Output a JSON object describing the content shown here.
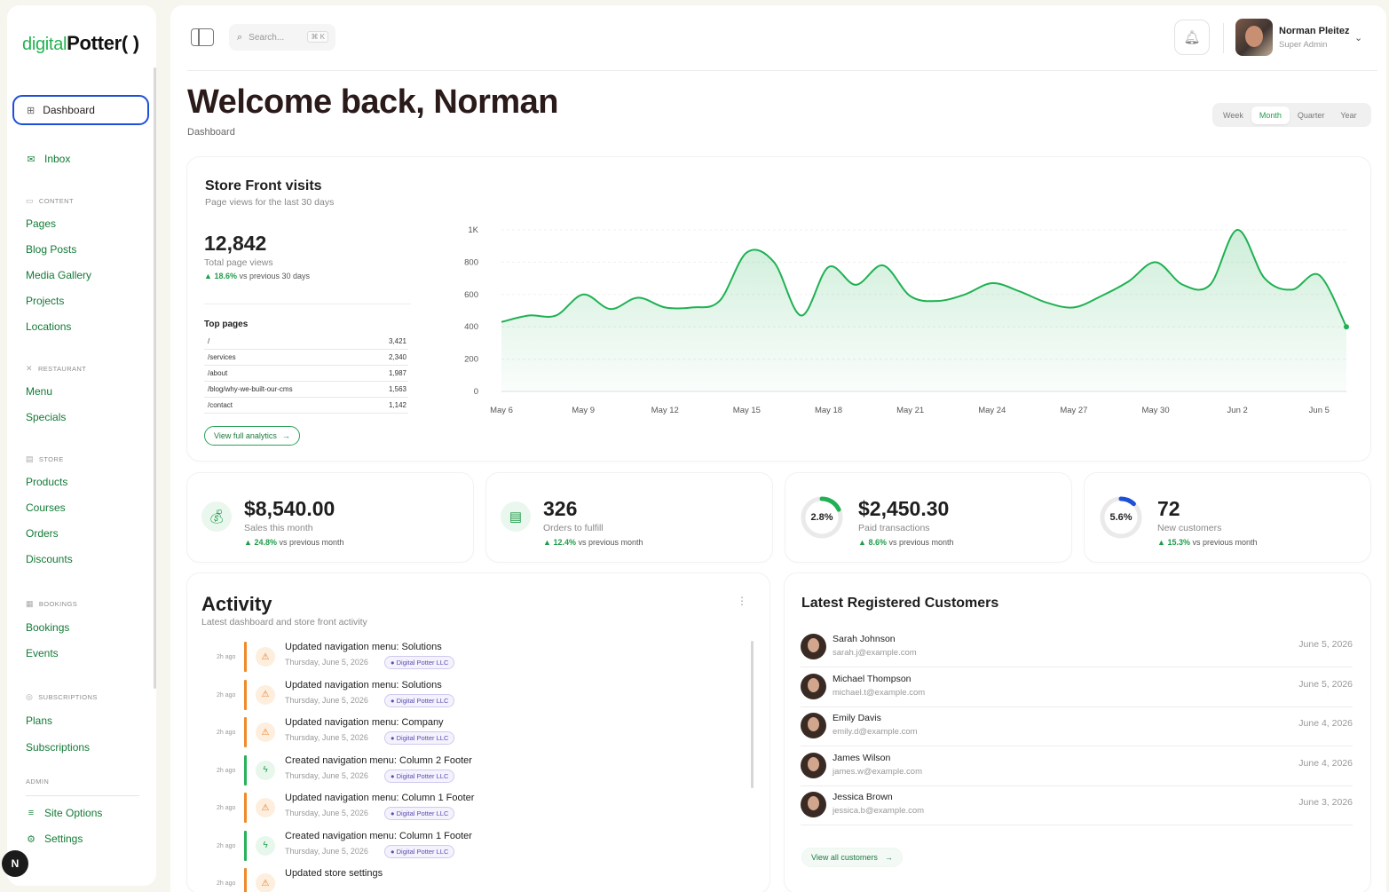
{
  "logo": {
    "part1": "digital",
    "part2": "Potter( )"
  },
  "sidebar": {
    "dashboard": "Dashboard",
    "inbox": "Inbox",
    "sections": {
      "content": "CONTENT",
      "restaurant": "RESTAURANT",
      "store": "STORE",
      "bookings": "BOOKINGS",
      "subscriptions": "SUBSCRIPTIONS",
      "admin": "ADMIN"
    },
    "content_items": [
      "Pages",
      "Blog Posts",
      "Media Gallery",
      "Projects",
      "Locations"
    ],
    "restaurant_items": [
      "Menu",
      "Specials"
    ],
    "store_items": [
      "Products",
      "Courses",
      "Orders",
      "Discounts"
    ],
    "bookings_items": [
      "Bookings",
      "Events"
    ],
    "subscriptions_items": [
      "Plans",
      "Subscriptions"
    ],
    "admin_items": [
      "Site Options",
      "Settings"
    ],
    "avatar_letter": "N"
  },
  "topbar": {
    "search_placeholder": "Search...",
    "search_kbd": "⌘ K",
    "user_name": "Norman Pleitez",
    "user_role": "Super Admin"
  },
  "page": {
    "title": "Welcome back, Norman",
    "breadcrumb": "Dashboard",
    "periods": [
      "Week",
      "Month",
      "Quarter",
      "Year"
    ],
    "active_period": "Month"
  },
  "storefront": {
    "title": "Store Front visits",
    "subtitle": "Page views for the last 30 days",
    "total": "12,842",
    "total_label": "Total page views",
    "trend_value": "18.6%",
    "trend_text": "vs previous 30 days",
    "top_pages_title": "Top pages",
    "top_pages": [
      {
        "path": "/",
        "views": "3,421"
      },
      {
        "path": "/services",
        "views": "2,340"
      },
      {
        "path": "/about",
        "views": "1,987"
      },
      {
        "path": "/blog/why-we-built-our-cms",
        "views": "1,563"
      },
      {
        "path": "/contact",
        "views": "1,142"
      }
    ],
    "view_analytics": "View full analytics"
  },
  "chart_data": {
    "type": "area",
    "title": "",
    "xlabel": "",
    "ylabel": "",
    "ylim": [
      0,
      1000
    ],
    "y_ticks": [
      "0",
      "200",
      "400",
      "600",
      "800",
      "1K"
    ],
    "x_ticks": [
      "May 6",
      "May 9",
      "May 12",
      "May 15",
      "May 18",
      "May 21",
      "May 24",
      "May 27",
      "May 30",
      "Jun 2",
      "Jun 5"
    ],
    "x": [
      "May 6",
      "May 7",
      "May 8",
      "May 9",
      "May 10",
      "May 11",
      "May 12",
      "May 13",
      "May 14",
      "May 15",
      "May 16",
      "May 17",
      "May 18",
      "May 19",
      "May 20",
      "May 21",
      "May 22",
      "May 23",
      "May 24",
      "May 25",
      "May 26",
      "May 27",
      "May 28",
      "May 29",
      "May 30",
      "May 31",
      "Jun 1",
      "Jun 2",
      "Jun 3",
      "Jun 4",
      "Jun 5",
      "Jun 6"
    ],
    "values": [
      430,
      470,
      470,
      600,
      510,
      580,
      520,
      520,
      560,
      860,
      800,
      470,
      770,
      660,
      780,
      590,
      560,
      600,
      670,
      620,
      550,
      520,
      590,
      680,
      800,
      660,
      660,
      1000,
      700,
      630,
      720,
      400
    ],
    "color": "#1fb153",
    "grid": true
  },
  "kpis": [
    {
      "value": "$8,540.00",
      "label": "Sales this month",
      "trend": "24.8%",
      "trend_text": "vs previous month",
      "icon": "money-bag-icon"
    },
    {
      "value": "326",
      "label": "Orders to fulfill",
      "trend": "12.4%",
      "trend_text": "vs previous month",
      "icon": "clipboard-icon"
    },
    {
      "value": "$2,450.30",
      "label": "Paid transactions",
      "trend": "8.6%",
      "trend_text": "vs previous month",
      "ring": "2.8%",
      "ring_fraction": 0.18,
      "ring_color": "#1fb153"
    },
    {
      "value": "72",
      "label": "New customers",
      "trend": "15.3%",
      "trend_text": "vs previous month",
      "ring": "5.6%",
      "ring_fraction": 0.12,
      "ring_color": "#1e4fd8"
    }
  ],
  "activity": {
    "title": "Activity",
    "subtitle": "Latest dashboard and store front activity",
    "items": [
      {
        "time": "2h ago",
        "text": "Updated navigation menu: Solutions",
        "date": "Thursday, June 5, 2026",
        "tag": "● Digital Potter LLC",
        "kind": "update"
      },
      {
        "time": "2h ago",
        "text": "Updated navigation menu: Solutions",
        "date": "Thursday, June 5, 2026",
        "tag": "● Digital Potter LLC",
        "kind": "update"
      },
      {
        "time": "2h ago",
        "text": "Updated navigation menu: Company",
        "date": "Thursday, June 5, 2026",
        "tag": "● Digital Potter LLC",
        "kind": "update"
      },
      {
        "time": "2h ago",
        "text": "Created navigation menu: Column 2 Footer",
        "date": "Thursday, June 5, 2026",
        "tag": "● Digital Potter LLC",
        "kind": "create"
      },
      {
        "time": "2h ago",
        "text": "Updated navigation menu: Column 1 Footer",
        "date": "Thursday, June 5, 2026",
        "tag": "● Digital Potter LLC",
        "kind": "update"
      },
      {
        "time": "2h ago",
        "text": "Created navigation menu: Column 1 Footer",
        "date": "Thursday, June 5, 2026",
        "tag": "● Digital Potter LLC",
        "kind": "create"
      },
      {
        "time": "2h ago",
        "text": "Updated store settings",
        "date": "",
        "tag": "",
        "kind": "update"
      }
    ]
  },
  "customers": {
    "title": "Latest Registered Customers",
    "rows": [
      {
        "name": "Sarah Johnson",
        "email": "sarah.j@example.com",
        "date": "June 5, 2026"
      },
      {
        "name": "Michael Thompson",
        "email": "michael.t@example.com",
        "date": "June 5, 2026"
      },
      {
        "name": "Emily Davis",
        "email": "emily.d@example.com",
        "date": "June 4, 2026"
      },
      {
        "name": "James Wilson",
        "email": "james.w@example.com",
        "date": "June 4, 2026"
      },
      {
        "name": "Jessica Brown",
        "email": "jessica.b@example.com",
        "date": "June 3, 2026"
      }
    ],
    "view_all": "View all customers"
  }
}
